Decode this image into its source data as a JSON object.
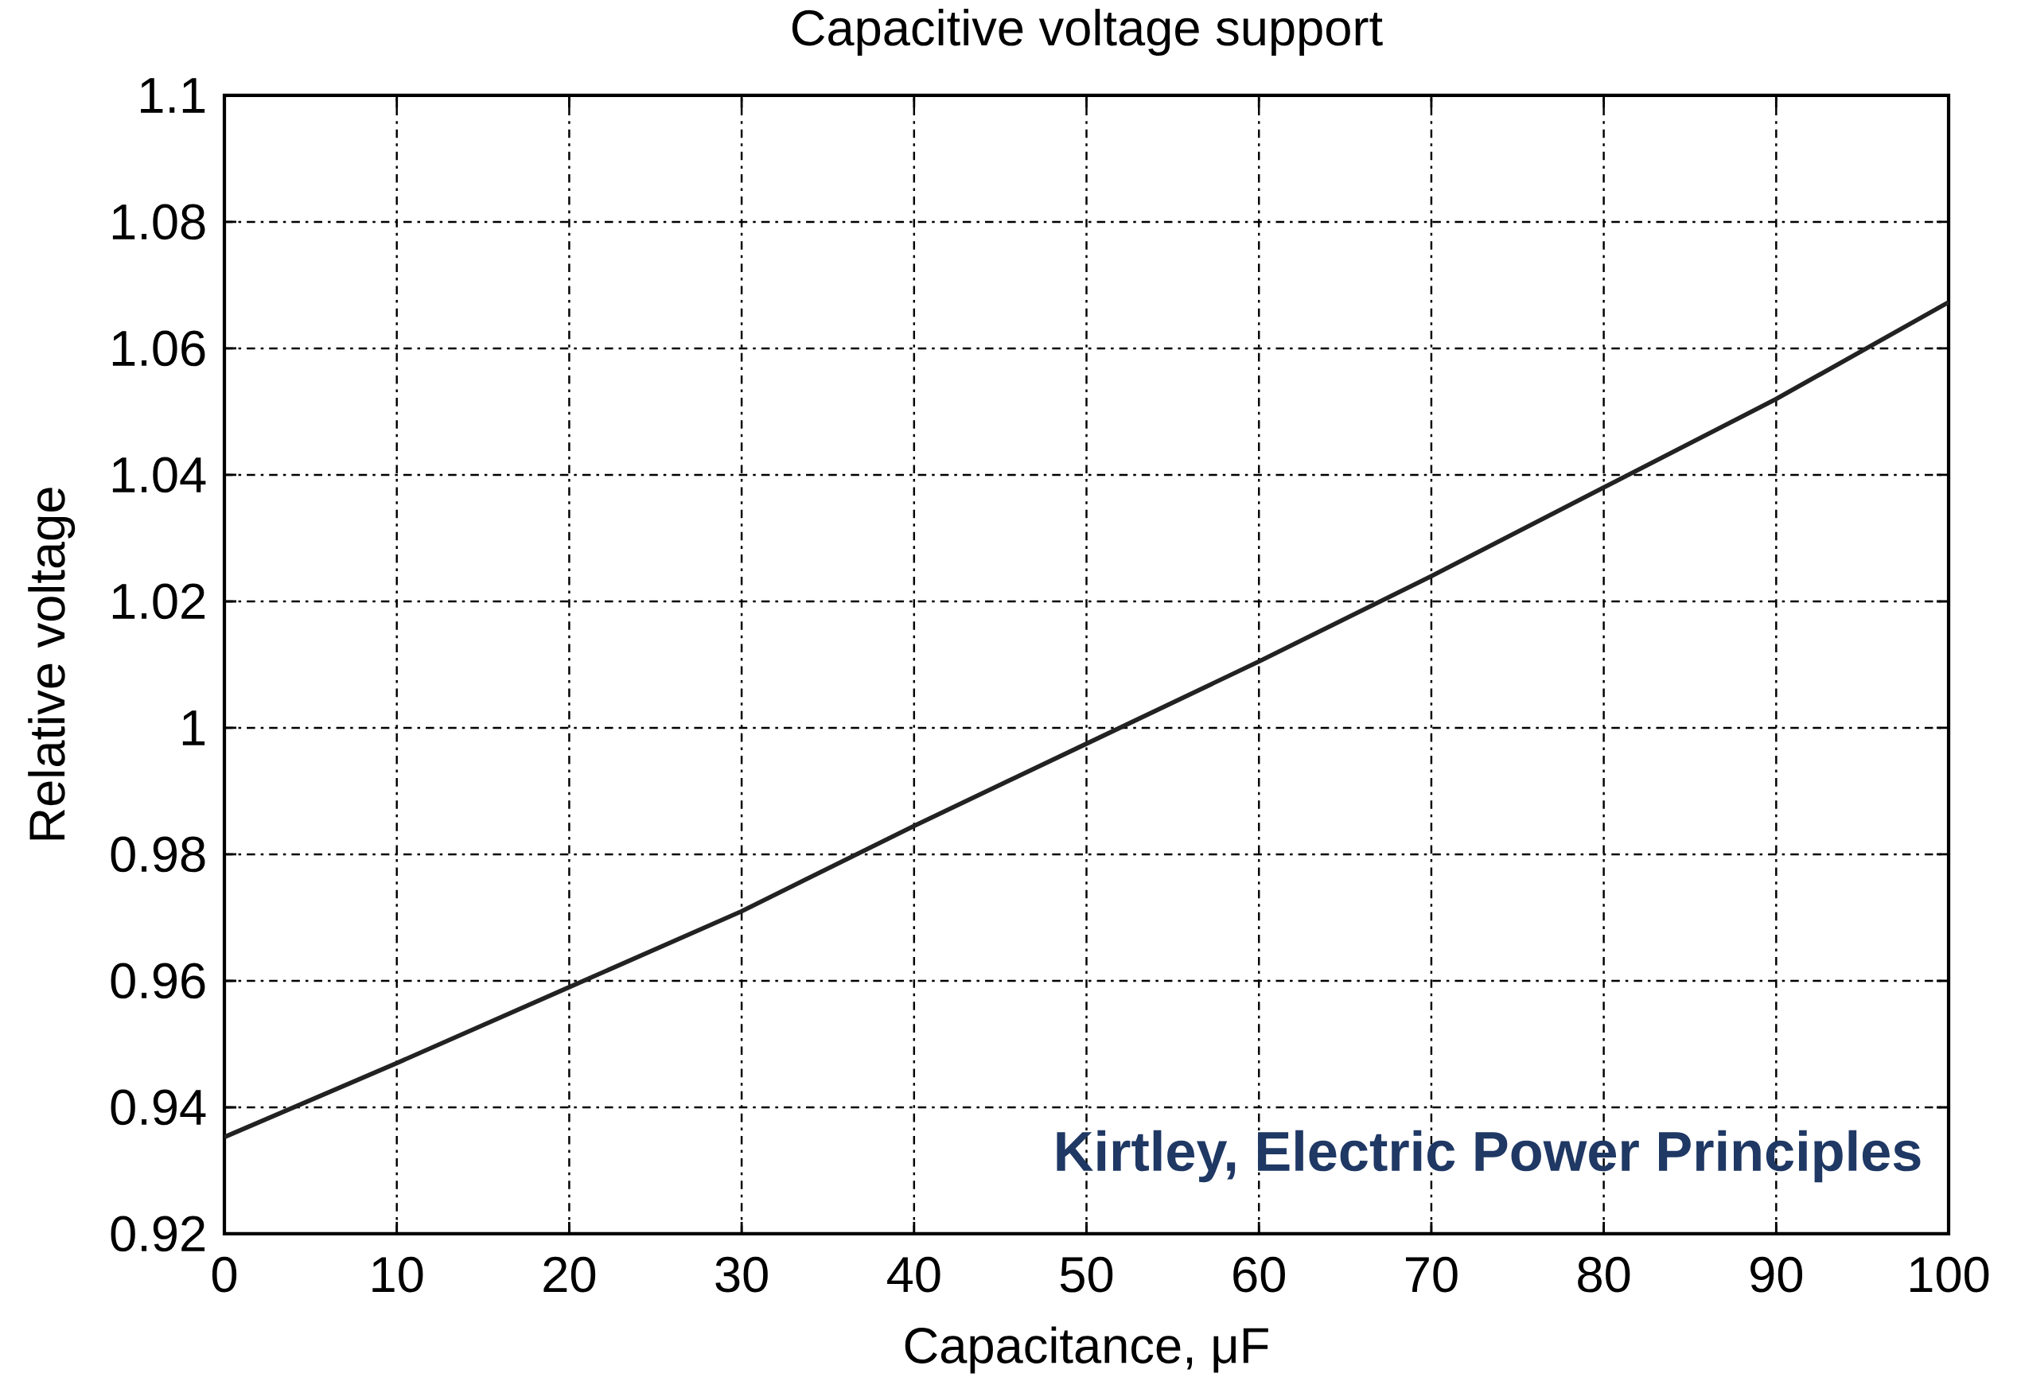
{
  "chart_data": {
    "type": "line",
    "title": "Capacitive voltage support",
    "xlabel": "Capacitance, μF",
    "ylabel": "Relative voltage",
    "x": [
      0,
      10,
      20,
      30,
      40,
      50,
      60,
      70,
      80,
      90,
      100
    ],
    "series": [
      {
        "color": "#222222",
        "values": [
          0.9353,
          0.947,
          0.959,
          0.971,
          0.9845,
          0.9975,
          1.0105,
          1.024,
          1.038,
          1.052,
          1.0673
        ]
      }
    ],
    "xlim": [
      0,
      100
    ],
    "ylim": [
      0.92,
      1.1
    ],
    "xticks": [
      0,
      10,
      20,
      30,
      40,
      50,
      60,
      70,
      80,
      90,
      100
    ],
    "yticks": [
      0.92,
      0.94,
      0.96,
      0.98,
      1,
      1.02,
      1.04,
      1.06,
      1.08,
      1.1
    ],
    "grid": true,
    "annotations": [
      "Kirtley, Electric Power Principles"
    ]
  }
}
